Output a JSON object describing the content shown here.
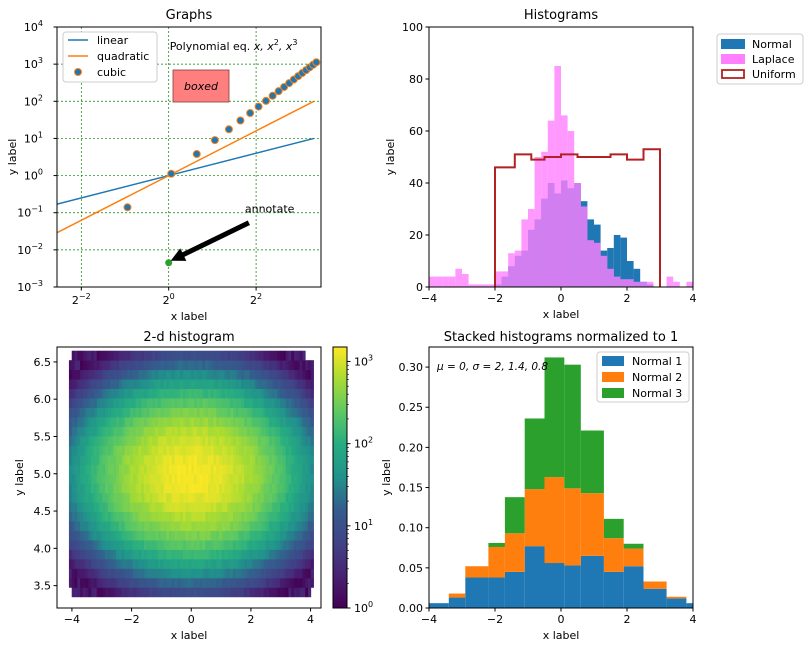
{
  "chart_data": [
    {
      "id": "graphs",
      "type": "line",
      "title": "Graphs",
      "xlabel": "x label",
      "ylabel": "y label",
      "xscale": "log2",
      "yscale": "log10",
      "xlim": [
        0.17,
        11.2
      ],
      "ylim": [
        0.001,
        10000
      ],
      "grid": true,
      "legend_position": "upper-left",
      "xticks": [
        {
          "v": 0.25,
          "b": "2",
          "e": "−2"
        },
        {
          "v": 1,
          "b": "2",
          "e": "0"
        },
        {
          "v": 4,
          "b": "2",
          "e": "2"
        }
      ],
      "yticks": [
        {
          "v": 0.001,
          "b": "10",
          "e": "−3"
        },
        {
          "v": 0.01,
          "b": "10",
          "e": "−2"
        },
        {
          "v": 0.1,
          "b": "10",
          "e": "−1"
        },
        {
          "v": 1,
          "b": "10",
          "e": "0"
        },
        {
          "v": 10,
          "b": "10",
          "e": "1"
        },
        {
          "v": 100,
          "b": "10",
          "e": "2"
        },
        {
          "v": 1000,
          "b": "10",
          "e": "3"
        },
        {
          "v": 10000,
          "b": "10",
          "e": "4"
        }
      ],
      "series": [
        {
          "name": "linear",
          "color": "#1f77b4",
          "style": "line",
          "x": [
            0.17,
            10
          ],
          "y": [
            0.17,
            10
          ]
        },
        {
          "name": "quadratic",
          "color": "#ff7f0e",
          "style": "line",
          "x": [
            0.17,
            10
          ],
          "y": [
            0.0289,
            100
          ]
        },
        {
          "name": "cubic",
          "color": "#1f77b4",
          "edge": "#ff7f0e",
          "style": "marker",
          "x": [
            0.52,
            1.04,
            1.56,
            2.08,
            2.6,
            3.12,
            3.64,
            4.16,
            4.68,
            5.2,
            5.72,
            6.24,
            6.76,
            7.28,
            7.8,
            8.32,
            8.84,
            9.36,
            9.88,
            10.4
          ],
          "y": [
            0.14,
            1.12,
            3.8,
            9,
            17.6,
            30.4,
            48.2,
            72,
            102.5,
            140.6,
            187.2,
            243,
            309,
            385.8,
            474.6,
            576,
            690,
            820,
            964,
            1125
          ]
        }
      ],
      "special_point": {
        "x": 1,
        "y": 0.0045,
        "color": "#2ca02c"
      },
      "text_annotation": {
        "prefix": "Polynomial eq. ",
        "terms": [
          "x",
          ", x",
          "2",
          ", x",
          "3"
        ]
      },
      "boxed_text": "boxed",
      "box_color": "#ff7f7f",
      "arrow_annotation": {
        "text": "annotate",
        "text_x": 3.8,
        "text_y": 0.1,
        "tip_x": 1,
        "tip_y": 0.0045
      }
    },
    {
      "id": "histograms",
      "type": "bar",
      "title": "Histograms",
      "xlabel": "x label",
      "ylabel": "y label",
      "xlim": [
        -4,
        4
      ],
      "ylim": [
        0,
        100
      ],
      "xticks": [
        -4,
        -2,
        0,
        2,
        4
      ],
      "yticks": [
        0,
        20,
        40,
        60,
        80,
        100
      ],
      "legend_position": "outside-upper-right",
      "bin_edges": [
        -4.0,
        -3.8,
        -3.6,
        -3.4,
        -3.2,
        -3.0,
        -2.8,
        -2.6,
        -2.4,
        -2.2,
        -2.0,
        -1.8,
        -1.6,
        -1.4,
        -1.2,
        -1.0,
        -0.8,
        -0.6,
        -0.4,
        -0.2,
        0.0,
        0.2,
        0.4,
        0.6,
        0.8,
        1.0,
        1.2,
        1.4,
        1.6,
        1.8,
        2.0,
        2.2,
        2.4,
        2.6,
        2.8,
        3.0,
        3.2,
        3.4,
        3.6,
        3.8,
        4.0
      ],
      "series": [
        {
          "name": "Normal",
          "color": "#1f77b4",
          "values": [
            0,
            0,
            0,
            0,
            0,
            0,
            0,
            0,
            0,
            0,
            1,
            4,
            8,
            12,
            14,
            22,
            26,
            34,
            40,
            36,
            41,
            38,
            40,
            33,
            26,
            24,
            14,
            15,
            20,
            19,
            10,
            7,
            2,
            1,
            0,
            0,
            0,
            0,
            0,
            0
          ]
        },
        {
          "name": "Laplace",
          "color": "#ff7fff",
          "values": [
            4,
            4,
            4,
            4,
            7,
            5,
            1,
            1,
            1,
            1,
            6,
            6,
            13,
            14,
            26,
            30,
            50,
            52,
            64,
            85,
            66,
            60,
            40,
            31,
            18,
            17,
            12,
            7,
            4,
            3,
            3,
            2,
            2,
            2,
            0,
            0,
            4,
            2,
            0,
            2
          ]
        },
        {
          "name": "Uniform",
          "color": "#b22222",
          "style": "step",
          "x_start": -2.0,
          "x_end": 3.0,
          "edges": [
            -2.0,
            -1.4,
            -0.9,
            -0.5,
            0.0,
            0.5,
            1.5,
            2.0,
            2.5,
            3.0
          ],
          "values": [
            46,
            51,
            49,
            50,
            51,
            50,
            51,
            49,
            53
          ]
        }
      ]
    },
    {
      "id": "hist2d",
      "type": "heatmap",
      "title": "2-d histogram",
      "xlabel": "x label",
      "ylabel": "y label",
      "xlim": [
        -4.5,
        4.35
      ],
      "ylim": [
        3.2,
        6.7
      ],
      "xticks": [
        -4,
        -2,
        0,
        2,
        4
      ],
      "yticks": [
        3.5,
        4.0,
        4.5,
        5.0,
        5.5,
        6.0,
        6.5
      ],
      "x_spread": 1.5,
      "y_spread": 0.5,
      "center": [
        0,
        5
      ],
      "peak_count": 1400,
      "colorbar": {
        "scale": "log",
        "min": 1,
        "max": 1500,
        "ticks": [
          {
            "v": 1,
            "e": "0"
          },
          {
            "v": 10,
            "e": "1"
          },
          {
            "v": 100,
            "e": "2"
          },
          {
            "v": 1000,
            "e": "3"
          }
        ]
      }
    },
    {
      "id": "stacked",
      "type": "bar",
      "stacked": true,
      "title": "Stacked histograms normalized to 1",
      "xlabel": "x label",
      "ylabel": "y label",
      "xlim": [
        -4,
        4
      ],
      "ylim": [
        0,
        0.325
      ],
      "xticks": [
        -4,
        -2,
        0,
        2,
        4
      ],
      "yticks": [
        0.0,
        0.05,
        0.1,
        0.15,
        0.2,
        0.25,
        0.3
      ],
      "legend_position": "upper-right",
      "annotation": "μ = 0, σ = 2, 1.4, 0.8",
      "bin_edges": [
        -4.0,
        -3.4,
        -2.9,
        -2.2,
        -1.7,
        -1.1,
        -0.5,
        0.1,
        0.6,
        1.3,
        1.9,
        2.5,
        3.2,
        3.8,
        4.0
      ],
      "series": [
        {
          "name": "Normal 1",
          "color": "#1f77b4",
          "values": [
            0.006,
            0.013,
            0.038,
            0.038,
            0.045,
            0.077,
            0.056,
            0.053,
            0.065,
            0.045,
            0.052,
            0.024,
            0.012,
            0.006
          ]
        },
        {
          "name": "Normal 2",
          "color": "#ff7f0e",
          "values": [
            0.0,
            0.005,
            0.014,
            0.038,
            0.048,
            0.071,
            0.107,
            0.096,
            0.078,
            0.042,
            0.022,
            0.009,
            0.002,
            0.0
          ]
        },
        {
          "name": "Normal 3",
          "color": "#2ca02c",
          "values": [
            0.0,
            0.0,
            0.0,
            0.005,
            0.045,
            0.088,
            0.149,
            0.154,
            0.078,
            0.024,
            0.006,
            0.0,
            0.0,
            0.0
          ]
        }
      ]
    }
  ]
}
